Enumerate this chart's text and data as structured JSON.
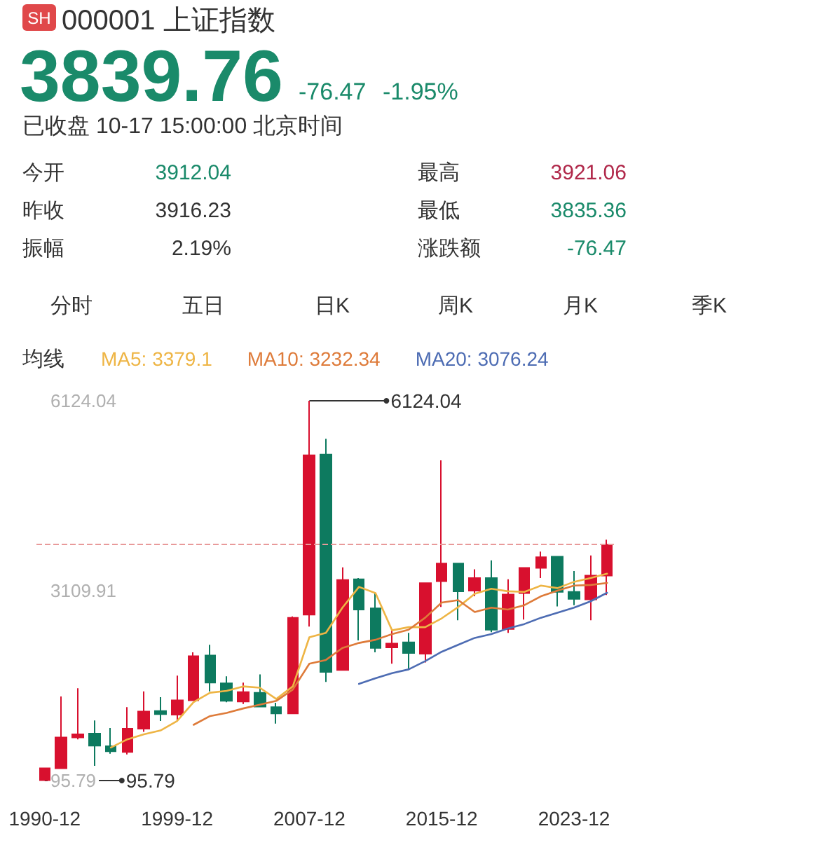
{
  "chart_data": [
    {
      "type": "other",
      "title": "000001 上证指数",
      "annotations": [
        "SH",
        "3839.76",
        "-76.47",
        "-1.95%",
        "已收盘 10-17 15:00:00 北京时间",
        "今开",
        "3912.04",
        "昨收",
        "3916.23",
        "振幅",
        "2.19%",
        "最高",
        "3921.06",
        "最低",
        "3835.36",
        "涨跌额",
        "-76.47",
        "分时",
        "五日",
        "日K",
        "周K",
        "月K",
        "季K"
      ]
    },
    {
      "type": "candlestick",
      "categories": [
        "1990-12",
        null,
        null,
        null,
        null,
        null,
        null,
        null,
        "1999-12",
        null,
        null,
        null,
        null,
        null,
        null,
        null,
        "2007-12",
        null,
        null,
        null,
        null,
        null,
        null,
        null,
        "2015-12",
        null,
        null,
        null,
        null,
        null,
        null,
        null,
        "2023-12",
        null,
        null
      ],
      "ohlc": [
        [
          100,
          290,
          95.79,
          290
        ],
        [
          290,
          1430,
          290,
          780
        ],
        [
          780,
          1560,
          750,
          830
        ],
        [
          840,
          1050,
          330,
          650
        ],
        [
          640,
          930,
          520,
          560
        ],
        [
          550,
          1260,
          510,
          920
        ],
        [
          920,
          1510,
          870,
          1190
        ],
        [
          1200,
          1420,
          1040,
          1150
        ],
        [
          1140,
          1760,
          1050,
          1370
        ],
        [
          1370,
          2130,
          1360,
          2070
        ],
        [
          2080,
          2250,
          1510,
          1650
        ],
        [
          1640,
          1750,
          1340,
          1360
        ],
        [
          1350,
          1650,
          1310,
          1500
        ],
        [
          1490,
          1780,
          1260,
          1270
        ],
        [
          1260,
          1330,
          1000,
          1160
        ],
        [
          1160,
          2700,
          1160,
          2680
        ],
        [
          2730,
          6124.04,
          2540,
          5260
        ],
        [
          5270,
          5520,
          1660,
          1820
        ],
        [
          1850,
          3480,
          1840,
          3280
        ],
        [
          3290,
          3310,
          2320,
          2810
        ],
        [
          2830,
          3070,
          2130,
          2200
        ],
        [
          2210,
          2480,
          1950,
          2270
        ],
        [
          2290,
          2440,
          1850,
          2120
        ],
        [
          2110,
          3240,
          1970,
          3230
        ],
        [
          3260,
          5180,
          2850,
          3540
        ],
        [
          3540,
          3540,
          2640,
          3100
        ],
        [
          3110,
          3450,
          3020,
          3310
        ],
        [
          3310,
          3590,
          2450,
          2490
        ],
        [
          2500,
          3290,
          2440,
          3050
        ],
        [
          3070,
          3470,
          2650,
          3470
        ],
        [
          3470,
          3730,
          3310,
          3640
        ],
        [
          3650,
          3650,
          2860,
          3090
        ],
        [
          3090,
          3420,
          2880,
          2980
        ],
        [
          2970,
          3670,
          2640,
          3350
        ],
        [
          3350,
          3920,
          3040,
          3839.76
        ]
      ],
      "colors": [
        "#d8102e",
        "#d8102e",
        "#d8102e",
        "#0d7a5f",
        "#0d7a5f",
        "#d8102e",
        "#d8102e",
        "#0d7a5f",
        "#d8102e",
        "#d8102e",
        "#0d7a5f",
        "#0d7a5f",
        "#d8102e",
        "#0d7a5f",
        "#0d7a5f",
        "#d8102e",
        "#d8102e",
        "#0d7a5f",
        "#d8102e",
        "#0d7a5f",
        "#0d7a5f",
        "#d8102e",
        "#0d7a5f",
        "#d8102e",
        "#d8102e",
        "#0d7a5f",
        "#d8102e",
        "#0d7a5f",
        "#d8102e",
        "#d8102e",
        "#d8102e",
        "#0d7a5f",
        "#0d7a5f",
        "#d8102e",
        "#d8102e"
      ],
      "series": [
        {
          "type": "line",
          "name": "MA5: 3379.1",
          "color": "#eeb545",
          "values": [
            null,
            null,
            null,
            null,
            620,
            750,
            830,
            890,
            1040,
            1340,
            1490,
            1520,
            1590,
            1570,
            1390,
            1590,
            2370,
            2440,
            2840,
            3170,
            3070,
            2480,
            2530,
            2530,
            2670,
            2850,
            3060,
            3140,
            3100,
            3090,
            3190,
            3150,
            3250,
            3310,
            3379.1
          ]
        },
        {
          "type": "line",
          "name": "MA10: 3232.34",
          "color": "#de7b3a",
          "values": [
            null,
            null,
            null,
            null,
            null,
            null,
            null,
            null,
            null,
            980,
            1120,
            1170,
            1240,
            1300,
            1360,
            1540,
            1950,
            2010,
            2200,
            2280,
            2330,
            2420,
            2490,
            2680,
            2920,
            2960,
            2770,
            2840,
            2810,
            2880,
            3020,
            3110,
            3190,
            3200,
            3232.34
          ]
        },
        {
          "type": "line",
          "name": "MA20: 3076.24",
          "color": "#4d6cb3",
          "values": [
            null,
            null,
            null,
            null,
            null,
            null,
            null,
            null,
            null,
            null,
            null,
            null,
            null,
            null,
            null,
            null,
            null,
            null,
            null,
            1630,
            1720,
            1800,
            1860,
            1990,
            2140,
            2250,
            2360,
            2420,
            2510,
            2580,
            2680,
            2760,
            2840,
            2940,
            3076.24
          ]
        }
      ],
      "ylim": [
        95.79,
        6124.04
      ],
      "yticks": [
        95.79,
        3109.91,
        6124.04
      ],
      "legend": "top",
      "legend_title": "均线",
      "marker": "none",
      "ref_lines": [
        {
          "axis": "y",
          "value": 3839.76,
          "color": "#e89a9a",
          "line_style": "dashed"
        }
      ],
      "annotations": [
        {
          "text": "6124.04",
          "x": "2007-12",
          "y": 6124.04
        },
        {
          "text": "95.79",
          "x": "1990-12",
          "y": 95.79
        }
      ]
    }
  ]
}
